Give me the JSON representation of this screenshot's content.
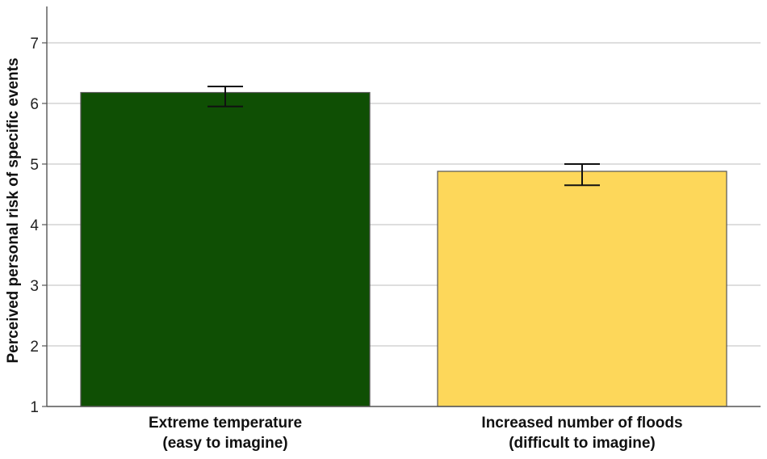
{
  "chart_data": {
    "type": "bar",
    "categories": [
      [
        "Extreme temperature",
        "(easy to imagine)"
      ],
      [
        "Increased number of floods",
        "(difficult to imagine)"
      ]
    ],
    "values": [
      6.18,
      4.88
    ],
    "error_low": [
      5.95,
      4.65
    ],
    "error_high": [
      6.28,
      5.0
    ],
    "bar_colors": [
      "#0f4f04",
      "#fdd75a"
    ],
    "ylabel": "Perceived personal risk of specific events",
    "ylim": [
      1,
      7.6
    ],
    "yticks": [
      1,
      2,
      3,
      4,
      5,
      6,
      7
    ],
    "grid": true
  }
}
